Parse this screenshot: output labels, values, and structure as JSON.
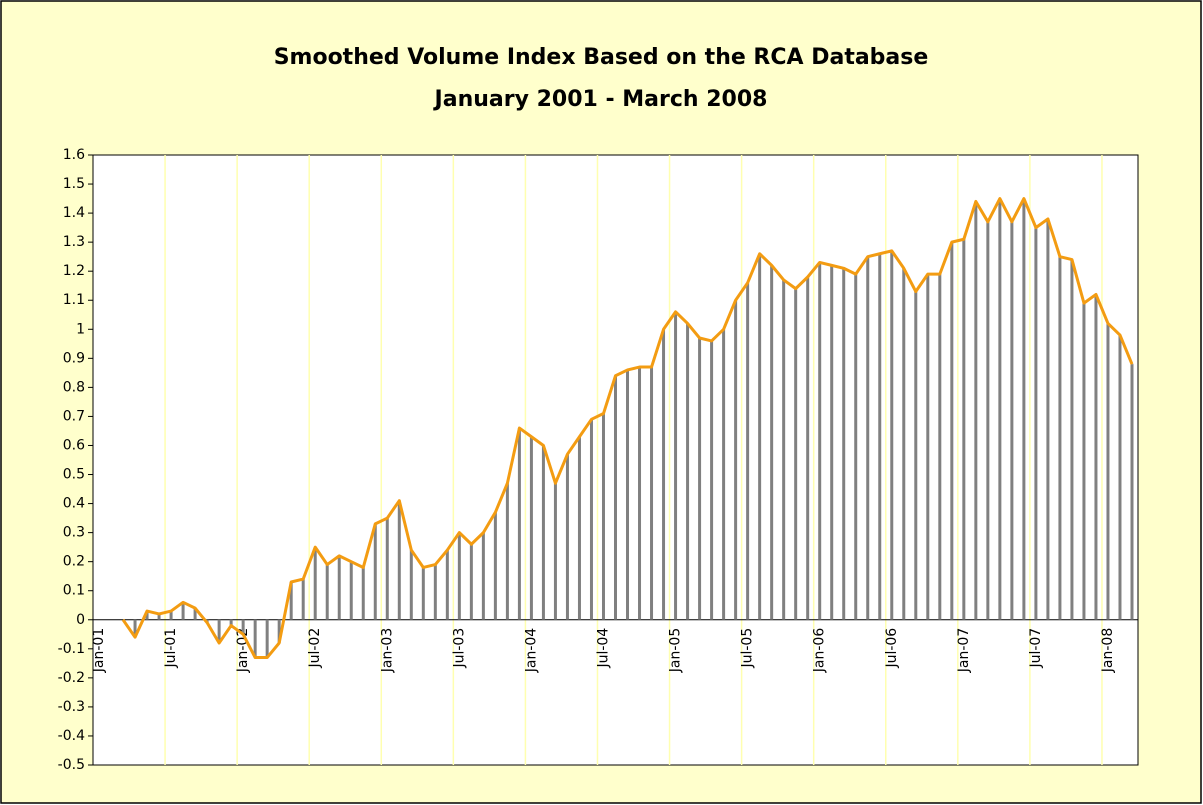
{
  "chart_data": {
    "type": "line",
    "title": "Smoothed Volume Index Based on the RCA Database",
    "subtitle": "January 2001 - March 2008",
    "categories": [
      "Jan-01",
      null,
      null,
      null,
      null,
      null,
      "Jul-01",
      null,
      null,
      null,
      null,
      null,
      "Jan-02",
      null,
      null,
      null,
      null,
      null,
      "Jul-02",
      null,
      null,
      null,
      null,
      null,
      "Jan-03",
      null,
      null,
      null,
      null,
      null,
      "Jul-03",
      null,
      null,
      null,
      null,
      null,
      "Jan-04",
      null,
      null,
      null,
      null,
      null,
      "Jul-04",
      null,
      null,
      null,
      null,
      null,
      "Jan-05",
      null,
      null,
      null,
      null,
      null,
      "Jul-05",
      null,
      null,
      null,
      null,
      null,
      "Jan-06",
      null,
      null,
      null,
      null,
      null,
      "Jul-06",
      null,
      null,
      null,
      null,
      null,
      "Jan-07",
      null,
      null,
      null,
      null,
      null,
      "Jul-07",
      null,
      null,
      null,
      null,
      null,
      "Jan-08",
      null,
      null
    ],
    "values": [
      null,
      null,
      0,
      -0.06,
      0.03,
      0.02,
      0.03,
      0.06,
      0.04,
      -0.01,
      -0.08,
      -0.02,
      -0.05,
      -0.13,
      -0.13,
      -0.08,
      0.13,
      0.14,
      0.25,
      0.19,
      0.22,
      0.2,
      0.18,
      0.33,
      0.35,
      0.41,
      0.24,
      0.18,
      0.19,
      0.24,
      0.3,
      0.26,
      0.3,
      0.37,
      0.47,
      0.66,
      0.63,
      0.6,
      0.47,
      0.57,
      0.63,
      0.69,
      0.71,
      0.84,
      0.86,
      0.87,
      0.87,
      1.0,
      1.06,
      1.02,
      0.97,
      0.96,
      1.0,
      1.1,
      1.16,
      1.26,
      1.22,
      1.17,
      1.14,
      1.18,
      1.23,
      1.22,
      1.21,
      1.19,
      1.25,
      1.26,
      1.27,
      1.21,
      1.13,
      1.19,
      1.19,
      1.3,
      1.31,
      1.44,
      1.37,
      1.45,
      1.37,
      1.45,
      1.35,
      1.38,
      1.25,
      1.24,
      1.09,
      1.12,
      1.02,
      0.98,
      0.88
    ],
    "color": "#f39c12",
    "drop_line_color": "#808080",
    "ylim": [
      -0.5,
      1.6
    ],
    "yticks": [
      1.6,
      1.5,
      1.4,
      1.3,
      1.2,
      1.1,
      1,
      0.9,
      0.8,
      0.7,
      0.6,
      0.5,
      0.4,
      0.3,
      0.2,
      0.1,
      0,
      -0.1,
      -0.2,
      -0.3,
      -0.4,
      -0.5
    ],
    "grid": true
  }
}
